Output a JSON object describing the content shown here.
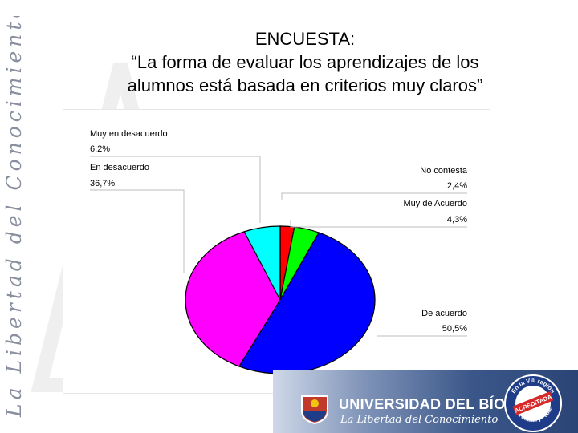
{
  "slide": {
    "title_lines": [
      "ENCUESTA:",
      "“La forma de evaluar los aprendizajes de los",
      "alumnos está basada en criterios muy claros”"
    ],
    "side_motto": "La Libertad del Conocimiento"
  },
  "footer": {
    "university": "UNIVERSIDAD DEL BÍO-BÍO",
    "motto": "La Libertad del Conocimiento",
    "seal_top": "En la VIII región",
    "seal_middle": "ACREDITADA",
    "seal_bottom": "Única Estatal y Pública"
  },
  "chart_data": {
    "type": "pie",
    "title": "",
    "slices": [
      {
        "label": "No contesta",
        "value_label": "2,4%",
        "value": 2.4,
        "color": "#ff0000"
      },
      {
        "label": "Muy de Acuerdo",
        "value_label": "4,3%",
        "value": 4.3,
        "color": "#00ff00"
      },
      {
        "label": "De acuerdo",
        "value_label": "50,5%",
        "value": 50.5,
        "color": "#0000ff"
      },
      {
        "label": "En desacuerdo",
        "value_label": "36,7%",
        "value": 36.7,
        "color": "#ff00ff"
      },
      {
        "label": "Muy en desacuerdo",
        "value_label": "6,2%",
        "value": 6.2,
        "color": "#00ffff"
      }
    ],
    "colors": {
      "side_text": "#8a8fa0",
      "footer_blue": "#2a4475"
    }
  }
}
